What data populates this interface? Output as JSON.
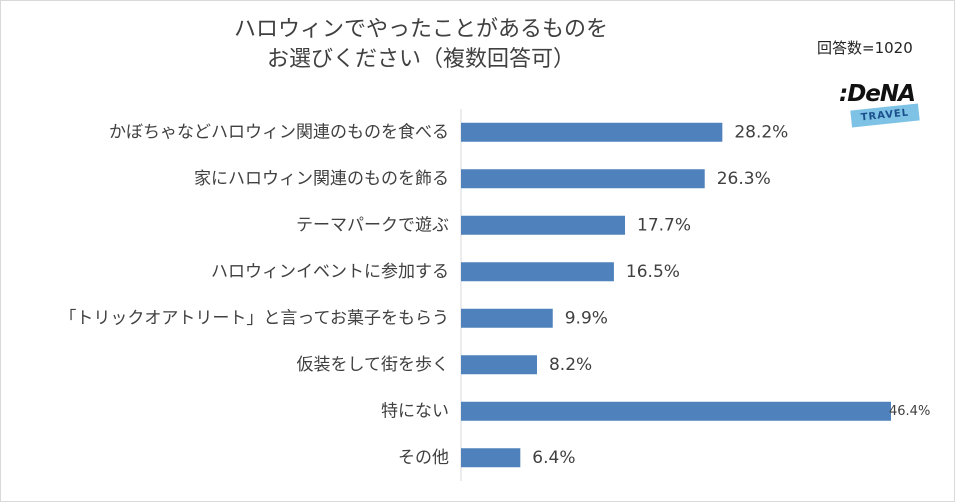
{
  "chart_data": {
    "type": "bar",
    "orientation": "horizontal",
    "title_lines": [
      "ハロウィンでやったことがあるものを",
      "お選びください（複数回答可）"
    ],
    "categories": [
      "かぼちゃなどハロウィン関連のものを食べる",
      "家にハロウィン関連のものを飾る",
      "テーマパークで遊ぶ",
      "ハロウィンイベントに参加する",
      "「トリックオアトリート」と言ってお菓子をもらう",
      "仮装をして街を歩く",
      "特にない",
      "その他"
    ],
    "values": [
      28.2,
      26.3,
      17.7,
      16.5,
      9.9,
      8.2,
      46.4,
      6.4
    ],
    "value_labels": [
      "28.2%",
      "26.3%",
      "17.7%",
      "16.5%",
      "9.9%",
      "8.2%",
      "46.4%",
      "6.4%"
    ],
    "xlim": [
      0,
      46.4
    ],
    "bar_color": "#4f81bd",
    "grid": false,
    "legend": "none"
  },
  "sample_size_label": "回答数=1020",
  "logo": {
    "wordmark": ":DeNA",
    "badge": "TRAVEL"
  }
}
